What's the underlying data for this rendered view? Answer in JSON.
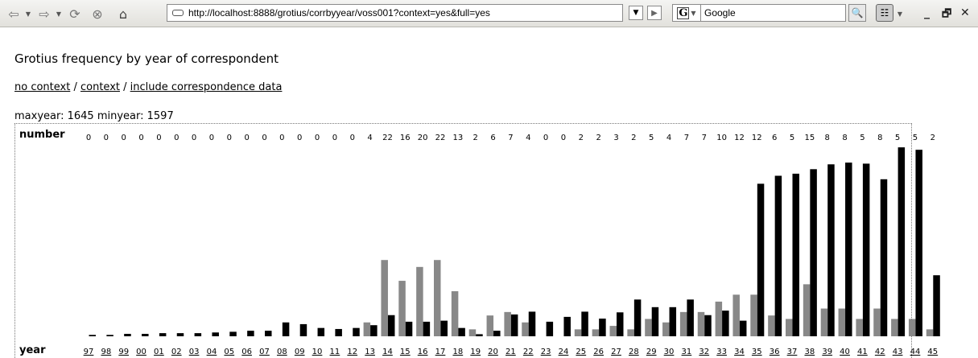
{
  "browser": {
    "url": "http://localhost:8888/grotius/corrbyyear/voss001?context=yes&full=yes",
    "search_engine": "G",
    "search_placeholder": "Google",
    "controls": {
      "minimize": "_",
      "restore": "🗗",
      "close": "✕"
    }
  },
  "page": {
    "title": "Grotius frequency by year of correspondent",
    "links": {
      "no_context": "no context",
      "context": "context",
      "include_data": "include correspondence data",
      "separator": " / "
    },
    "range_text": "maxyear: 1645 minyear: 1597"
  },
  "chart_data": {
    "type": "bar",
    "number_label": "number",
    "year_label": "year",
    "years": [
      "97",
      "98",
      "99",
      "00",
      "01",
      "02",
      "03",
      "04",
      "05",
      "06",
      "07",
      "08",
      "09",
      "10",
      "11",
      "12",
      "13",
      "14",
      "15",
      "16",
      "17",
      "18",
      "19",
      "20",
      "21",
      "22",
      "23",
      "24",
      "25",
      "26",
      "27",
      "28",
      "29",
      "30",
      "31",
      "32",
      "33",
      "34",
      "35",
      "36",
      "37",
      "38",
      "39",
      "40",
      "41",
      "42",
      "43",
      "44",
      "45"
    ],
    "numbers": [
      0,
      0,
      0,
      0,
      0,
      0,
      0,
      0,
      0,
      0,
      0,
      0,
      0,
      0,
      0,
      0,
      4,
      22,
      16,
      20,
      22,
      13,
      2,
      6,
      7,
      4,
      0,
      0,
      2,
      2,
      3,
      2,
      5,
      4,
      7,
      7,
      10,
      12,
      12,
      6,
      5,
      15,
      8,
      8,
      5,
      8,
      5,
      5,
      2
    ],
    "series": [
      {
        "color": "#888888",
        "values": [
          0,
          0,
          0,
          0,
          0,
          0,
          0,
          0,
          0,
          0,
          0,
          0,
          0,
          0,
          0,
          0,
          4,
          22,
          16,
          20,
          22,
          13,
          2,
          6,
          7,
          4,
          0,
          0,
          2,
          2,
          3,
          2,
          5,
          4,
          7,
          7,
          10,
          12,
          12,
          6,
          5,
          15,
          8,
          8,
          5,
          8,
          5,
          5,
          2
        ]
      },
      {
        "color": "#000000",
        "values": [
          0.4,
          0.4,
          0.7,
          0.7,
          0.9,
          0.9,
          0.9,
          1.1,
          1.3,
          1.6,
          1.6,
          4,
          3.5,
          2.4,
          2.1,
          2.4,
          3.2,
          6.1,
          4.2,
          4.2,
          4.5,
          2.4,
          0.6,
          1.6,
          6.3,
          7.1,
          4.2,
          5.6,
          7.1,
          5.1,
          6.9,
          10.6,
          8.4,
          8.4,
          10.6,
          6.1,
          7.4,
          4.5,
          44,
          46.3,
          46.9,
          48.2,
          49.6,
          50.1,
          49.8,
          45.3,
          54.5,
          53.8,
          17.6
        ]
      }
    ],
    "ylim": [
      0,
      55
    ]
  }
}
